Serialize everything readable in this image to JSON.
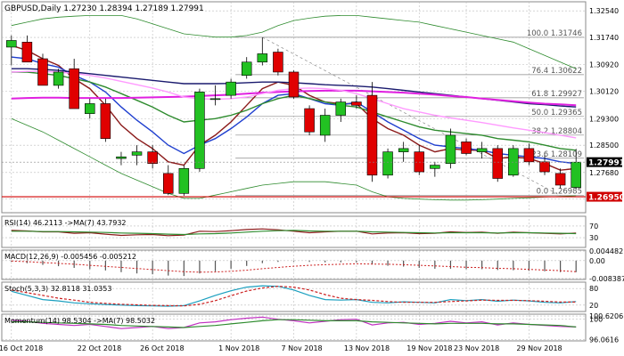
{
  "chart_data": {
    "type": "candlestick",
    "title": "GBPUSD,Daily  1.27230 1.28394 1.27189 1.27991",
    "x_ticks": [
      "16 Oct 2018",
      "22 Oct 2018",
      "26 Oct 2018",
      "1 Nov 2018",
      "7 Nov 2018",
      "13 Nov 2018",
      "19 Nov 2018",
      "23 Nov 2018",
      "29 Nov 2018"
    ],
    "y_ticks": [
      "1.32540",
      "1.31740",
      "1.30920",
      "1.30120",
      "1.29300",
      "1.28500",
      "1.27680",
      "1.26880"
    ],
    "ylim": [
      1.2655,
      1.3276
    ],
    "current_price": "1.27991",
    "support_price": "1.26950",
    "candles": [
      {
        "o": 1.3145,
        "h": 1.318,
        "l": 1.309,
        "c": 1.3165
      },
      {
        "o": 1.316,
        "h": 1.318,
        "l": 1.31,
        "c": 1.31
      },
      {
        "o": 1.311,
        "h": 1.3125,
        "l": 1.303,
        "c": 1.303
      },
      {
        "o": 1.303,
        "h": 1.308,
        "l": 1.302,
        "c": 1.307
      },
      {
        "o": 1.308,
        "h": 1.311,
        "l": 1.296,
        "c": 1.296
      },
      {
        "o": 1.2945,
        "h": 1.299,
        "l": 1.293,
        "c": 1.2975
      },
      {
        "o": 1.2975,
        "h": 1.299,
        "l": 1.286,
        "c": 1.287
      },
      {
        "o": 1.281,
        "h": 1.283,
        "l": 1.279,
        "c": 1.2815
      },
      {
        "o": 1.282,
        "h": 1.285,
        "l": 1.279,
        "c": 1.283
      },
      {
        "o": 1.283,
        "h": 1.285,
        "l": 1.278,
        "c": 1.2795
      },
      {
        "o": 1.2765,
        "h": 1.279,
        "l": 1.27,
        "c": 1.2705
      },
      {
        "o": 1.2705,
        "h": 1.279,
        "l": 1.2698,
        "c": 1.278
      },
      {
        "o": 1.278,
        "h": 1.302,
        "l": 1.277,
        "c": 1.301
      },
      {
        "o": 1.299,
        "h": 1.303,
        "l": 1.297,
        "c": 1.299
      },
      {
        "o": 1.3,
        "h": 1.305,
        "l": 1.299,
        "c": 1.304
      },
      {
        "o": 1.306,
        "h": 1.3115,
        "l": 1.305,
        "c": 1.31
      },
      {
        "o": 1.31,
        "h": 1.3174,
        "l": 1.309,
        "c": 1.3125
      },
      {
        "o": 1.313,
        "h": 1.314,
        "l": 1.306,
        "c": 1.307
      },
      {
        "o": 1.307,
        "h": 1.3075,
        "l": 1.299,
        "c": 1.2995
      },
      {
        "o": 1.296,
        "h": 1.297,
        "l": 1.288,
        "c": 1.289
      },
      {
        "o": 1.288,
        "h": 1.296,
        "l": 1.286,
        "c": 1.294
      },
      {
        "o": 1.294,
        "h": 1.299,
        "l": 1.292,
        "c": 1.298
      },
      {
        "o": 1.298,
        "h": 1.3,
        "l": 1.296,
        "c": 1.297
      },
      {
        "o": 1.3,
        "h": 1.304,
        "l": 1.274,
        "c": 1.276
      },
      {
        "o": 1.276,
        "h": 1.284,
        "l": 1.275,
        "c": 1.283
      },
      {
        "o": 1.283,
        "h": 1.286,
        "l": 1.28,
        "c": 1.284
      },
      {
        "o": 1.283,
        "h": 1.285,
        "l": 1.276,
        "c": 1.277
      },
      {
        "o": 1.278,
        "h": 1.28,
        "l": 1.2755,
        "c": 1.279
      },
      {
        "o": 1.2795,
        "h": 1.29,
        "l": 1.278,
        "c": 1.288
      },
      {
        "o": 1.286,
        "h": 1.287,
        "l": 1.282,
        "c": 1.2825
      },
      {
        "o": 1.283,
        "h": 1.286,
        "l": 1.281,
        "c": 1.284
      },
      {
        "o": 1.284,
        "h": 1.285,
        "l": 1.274,
        "c": 1.275
      },
      {
        "o": 1.276,
        "h": 1.285,
        "l": 1.2755,
        "c": 1.284
      },
      {
        "o": 1.284,
        "h": 1.2855,
        "l": 1.279,
        "c": 1.28
      },
      {
        "o": 1.28,
        "h": 1.282,
        "l": 1.276,
        "c": 1.277
      },
      {
        "o": 1.2765,
        "h": 1.278,
        "l": 1.272,
        "c": 1.273
      },
      {
        "o": 1.2723,
        "h": 1.2839,
        "l": 1.2719,
        "c": 1.2799
      }
    ],
    "overlays": [
      {
        "name": "ema-fast",
        "color": "#8b1a1a",
        "values": [
          1.315,
          1.3135,
          1.311,
          1.309,
          1.305,
          1.302,
          1.297,
          1.291,
          1.287,
          1.284,
          1.28,
          1.279,
          1.285,
          1.288,
          1.292,
          1.297,
          1.302,
          1.304,
          1.303,
          1.3,
          1.298,
          1.2975,
          1.2975,
          1.293,
          1.29,
          1.288,
          1.285,
          1.283,
          1.284,
          1.2835,
          1.2835,
          1.281,
          1.2815,
          1.281,
          1.2795,
          1.2775,
          1.278
        ]
      },
      {
        "name": "ema-mid",
        "color": "#1f3fcf",
        "values": [
          1.3115,
          1.311,
          1.3095,
          1.3085,
          1.306,
          1.304,
          1.301,
          1.2965,
          1.2925,
          1.289,
          1.285,
          1.2825,
          1.285,
          1.287,
          1.29,
          1.2935,
          1.2975,
          1.3,
          1.3005,
          1.299,
          1.2975,
          1.297,
          1.298,
          1.295,
          1.292,
          1.2895,
          1.287,
          1.285,
          1.2845,
          1.284,
          1.2835,
          1.2825,
          1.282,
          1.2815,
          1.281,
          1.28,
          1.2795
        ]
      },
      {
        "name": "ema-slow-green",
        "color": "#2e8b2e",
        "values": [
          1.307,
          1.307,
          1.3065,
          1.306,
          1.305,
          1.304,
          1.3025,
          1.3005,
          1.2985,
          1.2965,
          1.294,
          1.292,
          1.2925,
          1.293,
          1.294,
          1.2955,
          1.2975,
          1.299,
          1.3,
          1.299,
          1.298,
          1.297,
          1.2965,
          1.295,
          1.2935,
          1.292,
          1.2905,
          1.2895,
          1.289,
          1.2885,
          1.288,
          1.287,
          1.2865,
          1.286,
          1.285,
          1.284,
          1.2835
        ]
      },
      {
        "name": "ma-navy",
        "color": "#1a1a6e",
        "values": [
          1.308,
          1.308,
          1.3078,
          1.3075,
          1.307,
          1.3065,
          1.306,
          1.3055,
          1.305,
          1.3045,
          1.304,
          1.3035,
          1.3035,
          1.3035,
          1.3036,
          1.3038,
          1.304,
          1.304,
          1.3038,
          1.3035,
          1.3032,
          1.303,
          1.3028,
          1.3025,
          1.302,
          1.3015,
          1.301,
          1.3005,
          1.3,
          1.2995,
          1.299,
          1.2985,
          1.298,
          1.2975,
          1.2972,
          1.2968,
          1.2965
        ]
      },
      {
        "name": "ma-magenta",
        "color": "#e020e0",
        "values": [
          1.299,
          1.2992,
          1.2993,
          1.2993,
          1.2992,
          1.2992,
          1.2992,
          1.2992,
          1.2993,
          1.2994,
          1.2995,
          1.2996,
          1.2998,
          1.3,
          1.3002,
          1.3005,
          1.3008,
          1.301,
          1.3012,
          1.3013,
          1.3014,
          1.3014,
          1.3014,
          1.3012,
          1.301,
          1.3008,
          1.3005,
          1.3002,
          1.2998,
          1.2995,
          1.299,
          1.2986,
          1.2982,
          1.2978,
          1.2975,
          1.2973,
          1.297
        ]
      },
      {
        "name": "ma-pink",
        "color": "#ff9aff",
        "values": [
          1.307,
          1.3072,
          1.3072,
          1.307,
          1.3066,
          1.306,
          1.3052,
          1.3042,
          1.3032,
          1.3022,
          1.301,
          1.2995,
          1.299,
          1.2988,
          1.299,
          1.2995,
          1.3005,
          1.3015,
          1.302,
          1.3022,
          1.302,
          1.3015,
          1.3005,
          1.299,
          1.2975,
          1.296,
          1.295,
          1.294,
          1.2932,
          1.2925,
          1.2918,
          1.291,
          1.2902,
          1.2895,
          1.2888,
          1.288,
          1.2872
        ]
      },
      {
        "name": "bollinger-upper",
        "color": "#2e8b2e",
        "values": [
          1.321,
          1.322,
          1.323,
          1.3235,
          1.3238,
          1.324,
          1.324,
          1.324,
          1.323,
          1.3215,
          1.32,
          1.3185,
          1.318,
          1.3175,
          1.3175,
          1.318,
          1.319,
          1.321,
          1.3225,
          1.3232,
          1.3238,
          1.324,
          1.324,
          1.3235,
          1.323,
          1.3225,
          1.322,
          1.321,
          1.32,
          1.319,
          1.318,
          1.317,
          1.316,
          1.314,
          1.312,
          1.31,
          1.308
        ]
      },
      {
        "name": "bollinger-lower",
        "color": "#2e8b2e",
        "values": [
          1.293,
          1.291,
          1.289,
          1.2865,
          1.284,
          1.2815,
          1.279,
          1.2765,
          1.2745,
          1.2725,
          1.2705,
          1.269,
          1.269,
          1.27,
          1.271,
          1.272,
          1.273,
          1.2735,
          1.274,
          1.274,
          1.274,
          1.2735,
          1.273,
          1.271,
          1.2695,
          1.269,
          1.2688,
          1.2686,
          1.2685,
          1.2685,
          1.2686,
          1.2688,
          1.269,
          1.2692,
          1.2694,
          1.2696,
          1.2698
        ]
      }
    ],
    "fib_levels": [
      {
        "label": "100.0 1.31746",
        "price": 1.31746
      },
      {
        "label": "76.4 1.30622",
        "price": 1.30622
      },
      {
        "label": "61.8 1.29927",
        "price": 1.29927
      },
      {
        "label": "50.0 1.29365",
        "price": 1.29365
      },
      {
        "label": "38.2 1.28804",
        "price": 1.28804
      },
      {
        "label": "23.6 1.28109",
        "price": 1.28109
      },
      {
        "label": "0.0 1.26985",
        "price": 1.26985
      }
    ],
    "subpanels": [
      {
        "name": "rsi",
        "label": "RSI(14) 46.2113 ->MA(7) 43.7932",
        "ticks": [
          "70",
          "30"
        ],
        "range": [
          0,
          100
        ],
        "lines": [
          {
            "color": "#8b1a1a",
            "values": [
              55,
              53,
              50,
              50,
              45,
              47,
              42,
              38,
              40,
              41,
              37,
              39,
              52,
              51,
              54,
              58,
              60,
              57,
              52,
              47,
              50,
              52,
              52,
              43,
              46,
              47,
              44,
              45,
              50,
              48,
              49,
              45,
              49,
              47,
              45,
              43,
              46
            ]
          },
          {
            "color": "#2e8b2e",
            "values": [
              52,
              52,
              51,
              51,
              50,
              49,
              48,
              46,
              45,
              44,
              42,
              41,
              43,
              44,
              46,
              49,
              52,
              54,
              55,
              53,
              52,
              52,
              52,
              50,
              49,
              48,
              47,
              46,
              47,
              47,
              47,
              46,
              47,
              47,
              46,
              45,
              44
            ]
          }
        ]
      },
      {
        "name": "macd",
        "label": "MACD(12,26,9) -0.005456 -0.005212",
        "ticks": [
          "0.004482",
          "0.00",
          "-0.008387"
        ],
        "range": [
          -0.0084,
          0.0045
        ],
        "bars": [
          -0.0005,
          -0.0012,
          -0.002,
          -0.0026,
          -0.0034,
          -0.004,
          -0.0046,
          -0.0054,
          -0.006,
          -0.0064,
          -0.007,
          -0.0072,
          -0.006,
          -0.005,
          -0.0038,
          -0.0025,
          -0.0012,
          -0.0006,
          -0.0004,
          -0.0006,
          -0.0008,
          -0.0008,
          -0.0008,
          -0.0018,
          -0.0024,
          -0.0028,
          -0.0034,
          -0.0038,
          -0.0038,
          -0.004,
          -0.004,
          -0.0044,
          -0.0045,
          -0.0048,
          -0.005,
          -0.0054,
          -0.0054
        ],
        "signal": [
          -0.0002,
          -0.0005,
          -0.0009,
          -0.0013,
          -0.0017,
          -0.0022,
          -0.0027,
          -0.0032,
          -0.0037,
          -0.0042,
          -0.0047,
          -0.0052,
          -0.0054,
          -0.0053,
          -0.005,
          -0.0045,
          -0.0038,
          -0.0032,
          -0.0026,
          -0.0022,
          -0.0019,
          -0.0017,
          -0.0015,
          -0.0016,
          -0.0017,
          -0.0019,
          -0.0022,
          -0.0025,
          -0.0028,
          -0.0031,
          -0.0033,
          -0.0036,
          -0.0038,
          -0.0041,
          -0.0044,
          -0.0047,
          -0.0052
        ]
      },
      {
        "name": "stoch",
        "label": "Stoch(5,3,3) 32.8118 31.0353",
        "ticks": [
          "80",
          "20"
        ],
        "range": [
          0,
          100
        ],
        "lines": [
          {
            "color": "#1a9fbf",
            "values": [
              70,
              55,
              40,
              35,
              28,
              25,
              22,
              20,
              18,
              17,
              16,
              18,
              35,
              55,
              72,
              85,
              90,
              88,
              75,
              55,
              40,
              38,
              40,
              30,
              28,
              32,
              30,
              28,
              40,
              36,
              40,
              34,
              38,
              35,
              30,
              28,
              33
            ]
          },
          {
            "color": "#cc2020",
            "values": [
              75,
              65,
              55,
              45,
              38,
              30,
              26,
              23,
              21,
              19,
              18,
              17,
              23,
              36,
              54,
              71,
              82,
              88,
              85,
              75,
              58,
              45,
              40,
              37,
              33,
              30,
              30,
              30,
              33,
              35,
              38,
              37,
              37,
              36,
              34,
              31,
              31
            ]
          }
        ]
      },
      {
        "name": "momentum",
        "label": "Momentum(14) 98.5304 ->MA(7) 98.5032",
        "ticks": [
          "100.6206",
          "100",
          "96.0616"
        ],
        "range": [
          96.0,
          100.8
        ],
        "lines": [
          {
            "color": "#c030c0",
            "values": [
              99.8,
              99.6,
              99.2,
              99.0,
              98.8,
              99.0,
              98.6,
              98.2,
              98.4,
              98.6,
              98.2,
              98.4,
              99.3,
              99.5,
              99.9,
              100.2,
              100.4,
              100.0,
              99.7,
              99.3,
              99.6,
              99.9,
              100.0,
              98.9,
              99.3,
              99.4,
              99.0,
              99.2,
              99.6,
              99.3,
              99.5,
              98.9,
              99.3,
              99.0,
              98.8,
              98.6,
              98.5
            ]
          },
          {
            "color": "#2e8b2e",
            "values": [
              99.5,
              99.5,
              99.4,
              99.3,
              99.2,
              99.1,
              99.0,
              98.8,
              98.7,
              98.6,
              98.5,
              98.4,
              98.6,
              98.8,
              99.1,
              99.4,
              99.7,
              99.9,
              99.9,
              99.8,
              99.7,
              99.7,
              99.7,
              99.5,
              99.4,
              99.3,
              99.2,
              99.1,
              99.2,
              99.2,
              99.2,
              99.1,
              99.1,
              99.0,
              98.9,
              98.8,
              98.5
            ]
          }
        ]
      }
    ]
  }
}
